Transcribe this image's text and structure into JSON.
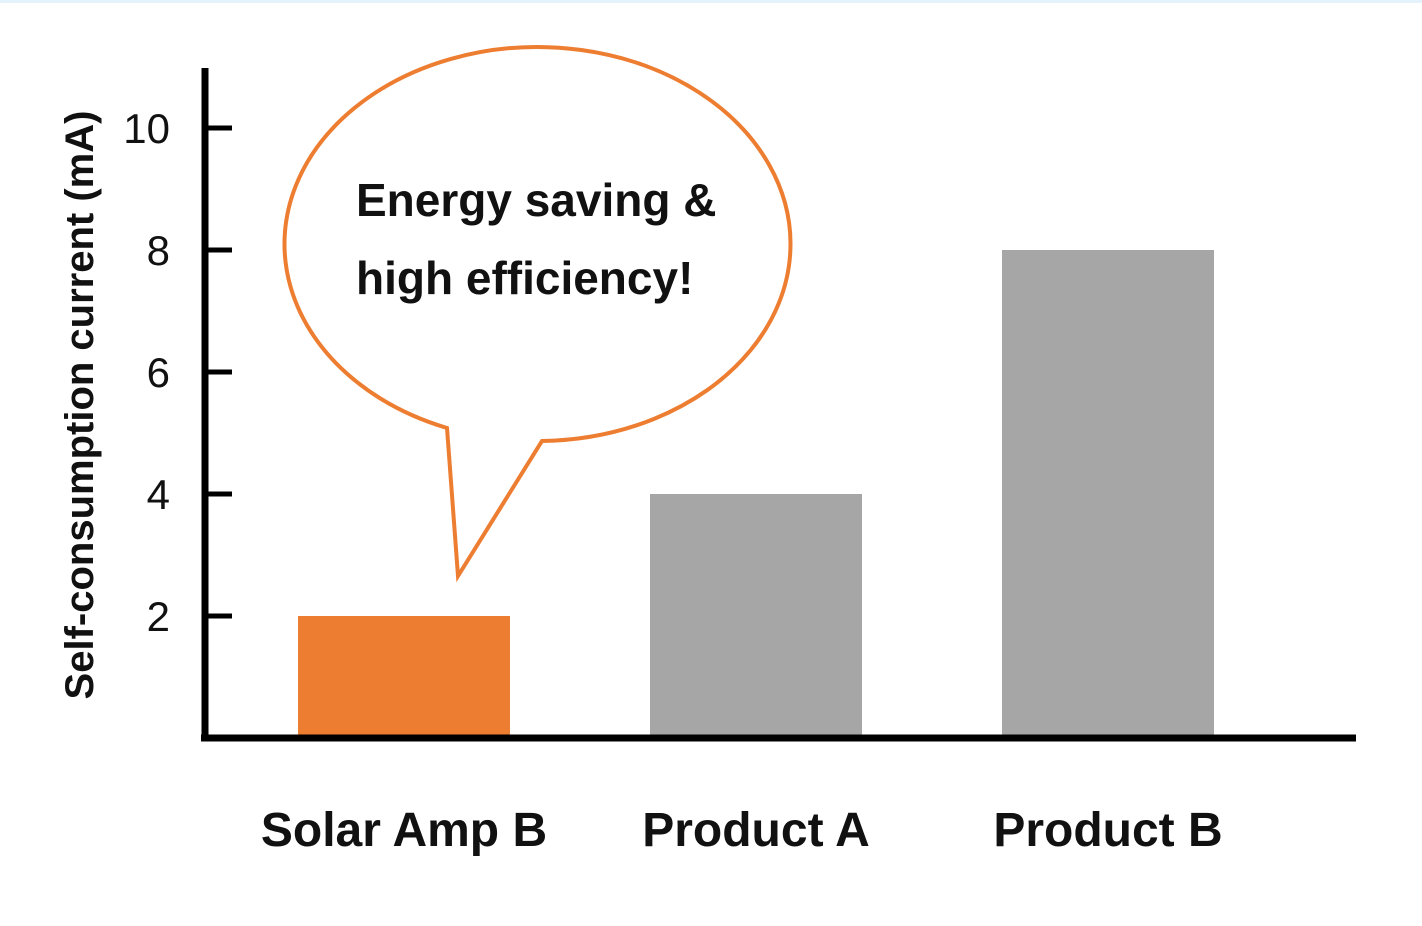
{
  "chart_data": {
    "type": "bar",
    "categories": [
      "Solar Amp B",
      "Product A",
      "Product B"
    ],
    "values": [
      2,
      4,
      8
    ],
    "bar_colors": [
      "#ed7d31",
      "#a6a6a6",
      "#a6a6a6"
    ],
    "ylabel": "Self-consumption current (mA)",
    "xlabel": "",
    "ylim": [
      0,
      11
    ],
    "yticks": [
      2,
      4,
      6,
      8,
      10
    ],
    "grid": false,
    "annotation": {
      "lines": [
        "Energy saving &",
        "high efficiency!"
      ],
      "target_category": "Solar Amp B",
      "border_color": "#ed7d31"
    }
  }
}
